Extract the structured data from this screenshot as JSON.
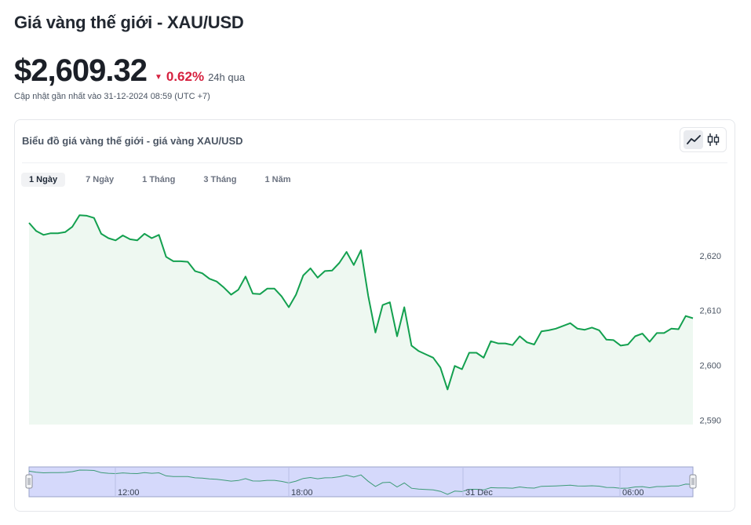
{
  "header": {
    "title": "Giá vàng thế giới - XAU/USD",
    "price": "$2,609.32",
    "change": "0.62%",
    "change_period": "24h qua",
    "updated": "Cập nhật gần nhất vào 31-12-2024 08:59 (UTC +7)"
  },
  "card": {
    "title": "Biểu đồ giá vàng thế giới - giá vàng XAU/USD",
    "ranges": [
      "1 Ngày",
      "7 Ngày",
      "1 Tháng",
      "3 Tháng",
      "1 Năm"
    ],
    "active_range": 0
  },
  "colors": {
    "line": "#13a04f",
    "area": "#eef8f1",
    "negative": "#d6213f",
    "navigator_fill": "#d5d9fb"
  },
  "icons": {
    "line_chart": "line-chart-icon",
    "candlestick": "candlestick-icon"
  },
  "chart_data": {
    "type": "area",
    "title": "",
    "xlabel": "",
    "ylabel": "",
    "ylim": [
      2589.2,
      2628
    ],
    "yticks": [
      2590,
      2600,
      2610,
      2620
    ],
    "ytick_labels": [
      "2,590",
      "2,600",
      "2,610",
      "2,620"
    ],
    "navigator_xtick_labels": [
      "12:00",
      "18:00",
      "31 Dec",
      "06:00"
    ],
    "series": [
      {
        "values": [
          2626.0,
          2624.5,
          2623.8,
          2624.1,
          2624.1,
          2624.3,
          2625.3,
          2627.4,
          2627.3,
          2626.9,
          2624.0,
          2623.2,
          2622.8,
          2623.7,
          2623.0,
          2622.8,
          2624.0,
          2623.2,
          2623.8,
          2619.8,
          2619.0,
          2619.0,
          2618.9,
          2617.2,
          2616.8,
          2615.8,
          2615.3,
          2614.2,
          2612.9,
          2613.8,
          2616.2,
          2613.1,
          2613.0,
          2614.0,
          2614.0,
          2612.6,
          2610.6,
          2612.9,
          2616.4,
          2617.7,
          2616.0,
          2617.2,
          2617.3,
          2618.7,
          2620.7,
          2618.3,
          2621.0,
          2612.7,
          2606.0,
          2611.0,
          2611.5,
          2605.3,
          2610.6,
          2603.6,
          2602.6,
          2602.0,
          2601.4,
          2599.6,
          2595.6,
          2599.9,
          2599.3,
          2602.3,
          2602.3,
          2601.4,
          2604.4,
          2604.0,
          2604.0,
          2603.7,
          2605.3,
          2604.2,
          2603.8,
          2606.2,
          2606.4,
          2606.7,
          2607.2,
          2607.7,
          2606.7,
          2606.5,
          2606.9,
          2606.4,
          2604.7,
          2604.6,
          2603.6,
          2603.8,
          2605.3,
          2605.8,
          2604.3,
          2605.9,
          2605.9,
          2606.7,
          2606.6,
          2609.0,
          2608.6
        ]
      }
    ]
  }
}
